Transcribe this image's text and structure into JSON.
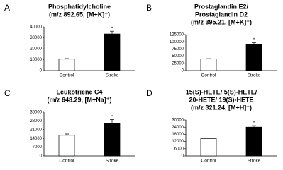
{
  "chart_data": [
    {
      "type": "bar",
      "label": "A",
      "title": [
        "Phosphatidylcholine",
        "(m/z 892.65, [M+K]⁺)"
      ],
      "categories": [
        "Control",
        "Stroke"
      ],
      "values": [
        10500,
        33500
      ],
      "errors": [
        500,
        2500
      ],
      "colors": [
        "#ffffff",
        "#000000"
      ],
      "annotation": "*",
      "ylim": [
        0,
        40000
      ],
      "yticks": [
        0,
        10000,
        20000,
        30000,
        40000
      ]
    },
    {
      "type": "bar",
      "label": "B",
      "title": [
        "Prostaglandin E2/",
        "Prostaglandin D2",
        "(m/z 395.21, [M+K]⁺)"
      ],
      "categories": [
        "Control",
        "Stroke"
      ],
      "values": [
        40000,
        92000
      ],
      "errors": [
        1500,
        5000
      ],
      "colors": [
        "#ffffff",
        "#000000"
      ],
      "annotation": "*",
      "ylim": [
        0,
        125000
      ],
      "yticks": [
        0,
        25000,
        50000,
        75000,
        100000,
        125000
      ]
    },
    {
      "type": "bar",
      "label": "C",
      "title": [
        "Leukotriene C4",
        "(m/z 648.29, [M+Na]⁺)"
      ],
      "categories": [
        "Control",
        "Stroke"
      ],
      "values": [
        16500,
        26000
      ],
      "errors": [
        1000,
        3000
      ],
      "colors": [
        "#ffffff",
        "#000000"
      ],
      "annotation": "*",
      "ylim": [
        0,
        35000
      ],
      "yticks": [
        0,
        7000,
        14000,
        21000,
        28000,
        35000
      ]
    },
    {
      "type": "bar",
      "label": "D",
      "title": [
        "15(S)-HETE/ 5(S)-HETE/",
        "20-HETE/ 19(S)-HETE",
        "(m/z 321.24, [M+H]⁺)"
      ],
      "categories": [
        "Control",
        "Stroke"
      ],
      "values": [
        14500,
        24000
      ],
      "errors": [
        600,
        1200
      ],
      "colors": [
        "#ffffff",
        "#000000"
      ],
      "annotation": "*",
      "ylim": [
        0,
        30000
      ],
      "yticks": [
        0,
        6000,
        12000,
        18000,
        24000,
        30000
      ]
    }
  ]
}
